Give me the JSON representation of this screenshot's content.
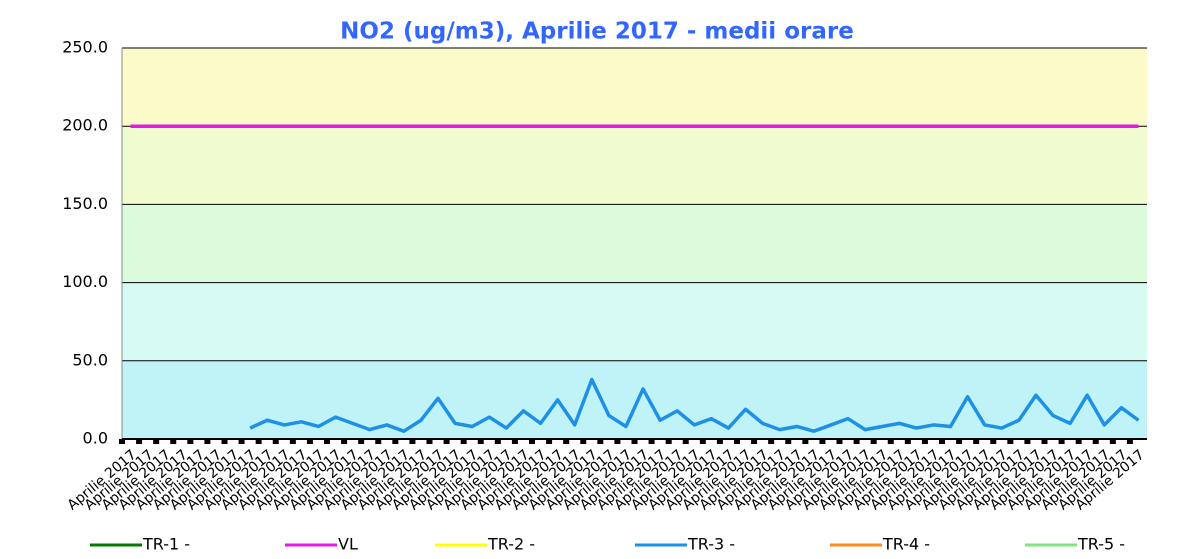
{
  "chart_data": {
    "type": "line",
    "title": "NO2 (ug/m3), Aprilie 2017 - medii orare",
    "categories": [
      "Aprilie 2017",
      "Aprilie 2017",
      "Aprilie 2017",
      "Aprilie 2017",
      "Aprilie 2017",
      "Aprilie 2017",
      "Aprilie 2017",
      "Aprilie 2017",
      "Aprilie 2017",
      "Aprilie 2017",
      "Aprilie 2017",
      "Aprilie 2017",
      "Aprilie 2017",
      "Aprilie 2017",
      "Aprilie 2017",
      "Aprilie 2017",
      "Aprilie 2017",
      "Aprilie 2017",
      "Aprilie 2017",
      "Aprilie 2017",
      "Aprilie 2017",
      "Aprilie 2017",
      "Aprilie 2017",
      "Aprilie 2017",
      "Aprilie 2017",
      "Aprilie 2017",
      "Aprilie 2017",
      "Aprilie 2017",
      "Aprilie 2017",
      "Aprilie 2017",
      "Aprilie 2017",
      "Aprilie 2017",
      "Aprilie 2017",
      "Aprilie 2017",
      "Aprilie 2017",
      "Aprilie 2017",
      "Aprilie 2017",
      "Aprilie 2017",
      "Aprilie 2017",
      "Aprilie 2017",
      "Aprilie 2017",
      "Aprilie 2017",
      "Aprilie 2017",
      "Aprilie 2017",
      "Aprilie 2017",
      "Aprilie 2017",
      "Aprilie 2017",
      "Aprilie 2017",
      "Aprilie 2017",
      "Aprilie 2017",
      "Aprilie 2017",
      "Aprilie 2017",
      "Aprilie 2017",
      "Aprilie 2017",
      "Aprilie 2017",
      "Aprilie 2017",
      "Aprilie 2017",
      "Aprilie 2017",
      "Aprilie 2017",
      "Aprilie 2017"
    ],
    "series": [
      {
        "name": "TR-1 -",
        "color": "#007a00",
        "values": [
          null,
          null,
          null,
          null,
          null,
          null,
          null,
          null,
          null,
          null,
          null,
          null,
          null,
          null,
          null,
          null,
          null,
          null,
          null,
          null,
          null,
          null,
          null,
          null,
          null,
          null,
          null,
          null,
          null,
          null,
          null,
          null,
          null,
          null,
          null,
          null,
          null,
          null,
          null,
          null,
          null,
          null,
          null,
          null,
          null,
          null,
          null,
          null,
          null,
          null,
          null,
          null,
          null,
          null,
          null,
          null,
          null,
          null,
          null,
          null
        ]
      },
      {
        "name": "VL",
        "color": "#e619e6",
        "values": [
          200,
          200,
          200,
          200,
          200,
          200,
          200,
          200,
          200,
          200,
          200,
          200,
          200,
          200,
          200,
          200,
          200,
          200,
          200,
          200,
          200,
          200,
          200,
          200,
          200,
          200,
          200,
          200,
          200,
          200,
          200,
          200,
          200,
          200,
          200,
          200,
          200,
          200,
          200,
          200,
          200,
          200,
          200,
          200,
          200,
          200,
          200,
          200,
          200,
          200,
          200,
          200,
          200,
          200,
          200,
          200,
          200,
          200,
          200,
          200
        ]
      },
      {
        "name": "TR-2 -",
        "color": "#ffff00",
        "values": [
          null,
          null,
          null,
          null,
          null,
          null,
          null,
          null,
          null,
          null,
          null,
          null,
          null,
          null,
          null,
          null,
          null,
          null,
          null,
          null,
          null,
          null,
          null,
          null,
          null,
          null,
          null,
          null,
          null,
          null,
          null,
          null,
          null,
          null,
          null,
          null,
          null,
          null,
          null,
          null,
          null,
          null,
          null,
          null,
          null,
          null,
          null,
          null,
          null,
          null,
          null,
          null,
          null,
          null,
          null,
          null,
          null,
          null,
          null,
          null
        ]
      },
      {
        "name": "TR-3 -",
        "color": "#1e90e6",
        "values": [
          null,
          null,
          null,
          null,
          null,
          null,
          null,
          7,
          12,
          9,
          11,
          8,
          14,
          10,
          6,
          9,
          5,
          12,
          26,
          10,
          8,
          14,
          7,
          18,
          10,
          25,
          9,
          38,
          15,
          8,
          32,
          12,
          18,
          9,
          13,
          7,
          19,
          10,
          6,
          8,
          5,
          9,
          13,
          6,
          8,
          10,
          7,
          9,
          8,
          27,
          9,
          7,
          12,
          28,
          15,
          10,
          28,
          9,
          20,
          12
        ]
      },
      {
        "name": "TR-4 -",
        "color": "#ff8c1a",
        "values": [
          null,
          null,
          null,
          null,
          null,
          null,
          null,
          null,
          null,
          null,
          null,
          null,
          null,
          null,
          null,
          null,
          null,
          null,
          null,
          null,
          null,
          null,
          null,
          null,
          null,
          null,
          null,
          null,
          null,
          null,
          null,
          null,
          null,
          null,
          null,
          null,
          null,
          null,
          null,
          null,
          null,
          null,
          null,
          null,
          null,
          null,
          null,
          null,
          null,
          null,
          null,
          null,
          null,
          null,
          null,
          null,
          null,
          null,
          null,
          null
        ]
      },
      {
        "name": "TR-5 -",
        "color": "#80e680",
        "values": [
          null,
          null,
          null,
          null,
          null,
          null,
          null,
          null,
          null,
          null,
          null,
          null,
          null,
          null,
          null,
          null,
          null,
          null,
          null,
          null,
          null,
          null,
          null,
          null,
          null,
          null,
          null,
          null,
          null,
          null,
          null,
          null,
          null,
          null,
          null,
          null,
          null,
          null,
          null,
          null,
          null,
          null,
          null,
          null,
          null,
          null,
          null,
          null,
          null,
          null,
          null,
          null,
          null,
          null,
          null,
          null,
          null,
          null,
          null,
          null
        ]
      }
    ],
    "ylim": [
      0,
      250
    ],
    "yticks": [
      {
        "value": 0,
        "label": "0.0"
      },
      {
        "value": 50,
        "label": "50.0"
      },
      {
        "value": 100,
        "label": "100.0"
      },
      {
        "value": 150,
        "label": "150.0"
      },
      {
        "value": 200,
        "label": "200.0"
      },
      {
        "value": 250,
        "label": "250.0"
      }
    ],
    "background_colors": [
      "#bff3f7",
      "#d6fbf3",
      "#dcfbdc",
      "#f0fbd0",
      "#fbfbc9"
    ],
    "grid": true,
    "legend": "bottom"
  }
}
